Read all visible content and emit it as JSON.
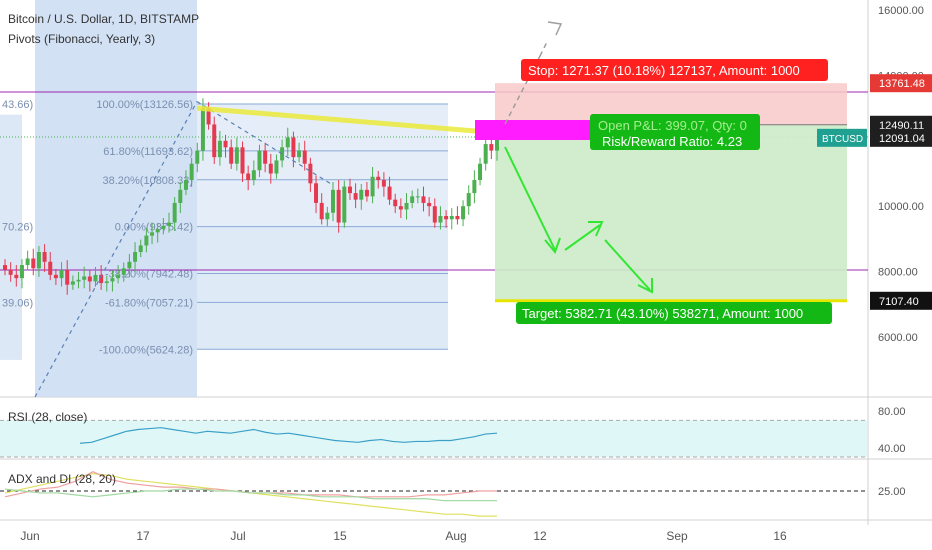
{
  "chart_data": [
    {
      "type": "candlestick",
      "title": "Bitcoin / U.S. Dollar, 1D, BITSTAMP",
      "indicator": "Pivots (Fibonacci, Yearly, 3)",
      "symbol_label": "BTCUSD",
      "x_ticks": [
        "Jun",
        "17",
        "Jul",
        "15",
        "Aug",
        "12",
        "Sep",
        "16"
      ],
      "y_ticks": [
        "16000.00",
        "14000.00",
        "12000.00",
        "10000.00",
        "8000.00",
        "6000.00"
      ],
      "ylim": [
        4000,
        16600
      ],
      "price_labels": [
        {
          "text": "13761.48",
          "value": 13761.48,
          "color": "#e53935"
        },
        {
          "text": "12490.11",
          "value": 12490.11,
          "color": "#1f1f1f"
        },
        {
          "text": "12091.04",
          "value": 12091.04,
          "color": "#1f1f1f"
        },
        {
          "text": "7107.40",
          "value": 7107.4,
          "color": "#111111"
        }
      ],
      "pivot_levels": [
        {
          "label": "100.00%(13126.56)",
          "value": 13126.56
        },
        {
          "label": "61.80%(11693.62)",
          "value": 11693.62
        },
        {
          "label": "38.20%(10808.33)",
          "value": 10808.33
        },
        {
          "label": "0.00%(9375.42)",
          "value": 9375.42
        },
        {
          "label": "-38.20%(7942.48)",
          "value": 7942.48
        },
        {
          "label": "-61.80%(7057.21)",
          "value": 7057.21
        },
        {
          "label": "-100.00%(5624.28)",
          "value": 5624.28
        }
      ],
      "left_fragments": [
        "43.66)",
        "70.26)",
        "39.06)"
      ],
      "position": {
        "entry": 12490.11,
        "stop": 13761.48,
        "target": 7107.4,
        "stop_label": "Stop: 1271.37 (10.18%) 127137, Amount: 1000",
        "target_label": "Target: 5382.71 (43.10%) 538271, Amount: 1000",
        "pnl_label": "Open P&L: 399.07, Qty: 0",
        "rr_label": "Risk/Reward Ratio: 4.23"
      },
      "closes": [
        8050,
        7900,
        7800,
        8200,
        8400,
        8100,
        8600,
        8300,
        7900,
        7800,
        8050,
        7600,
        7700,
        7750,
        7850,
        7700,
        7900,
        7650,
        7700,
        7800,
        7900,
        8100,
        8300,
        8600,
        8800,
        9100,
        9200,
        9300,
        9400,
        9500,
        10100,
        10500,
        10800,
        11300,
        11700,
        13000,
        12500,
        11500,
        12000,
        11800,
        11300,
        11800,
        11000,
        10800,
        11100,
        11700,
        11300,
        11000,
        11400,
        11800,
        12100,
        11500,
        11700,
        11300,
        10700,
        10100,
        9600,
        9800,
        10500,
        9500,
        10600,
        10400,
        10200,
        10500,
        10300,
        10900,
        10800,
        10600,
        10200,
        10000,
        9900,
        10100,
        10300,
        10300,
        10100,
        10000,
        9500,
        9700,
        9600,
        9700,
        9600,
        10000,
        10400,
        10800,
        11300,
        11900,
        11700,
        12100
      ]
    },
    {
      "type": "line",
      "title": "RSI (28, close)",
      "y_ticks": [
        "80.00",
        "40.00"
      ],
      "ylim": [
        30,
        90
      ],
      "values": [
        45,
        46,
        50,
        54,
        58,
        60,
        61,
        62,
        60,
        58,
        56,
        58,
        57,
        56,
        58,
        60,
        57,
        55,
        56,
        54,
        52,
        50,
        48,
        47,
        46,
        48,
        49,
        47,
        46,
        47,
        47,
        48,
        48,
        50,
        52,
        55,
        56
      ]
    },
    {
      "type": "line",
      "title": "ADX and DI (28, 20)",
      "y_ticks": [
        "25.00"
      ],
      "ylim": [
        10,
        40
      ],
      "series": [
        {
          "values": [
            24,
            26,
            28,
            30,
            32,
            34,
            33,
            31,
            30,
            29,
            28,
            27,
            26,
            25,
            24,
            23,
            22,
            21,
            20,
            19,
            18,
            17,
            16,
            15,
            14,
            13,
            13,
            12,
            12
          ]
        },
        {
          "values": [
            22,
            24,
            26,
            27,
            30,
            35,
            31,
            29,
            28,
            27,
            27,
            26,
            26,
            25,
            24,
            24,
            24,
            23,
            23,
            23,
            22,
            22,
            22,
            22,
            23,
            23,
            24,
            25,
            25
          ]
        },
        {
          "values": [
            26,
            25,
            24,
            24,
            23,
            22,
            23,
            24,
            25,
            25,
            26,
            26,
            25,
            25,
            24,
            24,
            23,
            23,
            22,
            22,
            22,
            21,
            21,
            21,
            21,
            20,
            20,
            20,
            20
          ]
        }
      ],
      "threshold": 25
    }
  ]
}
